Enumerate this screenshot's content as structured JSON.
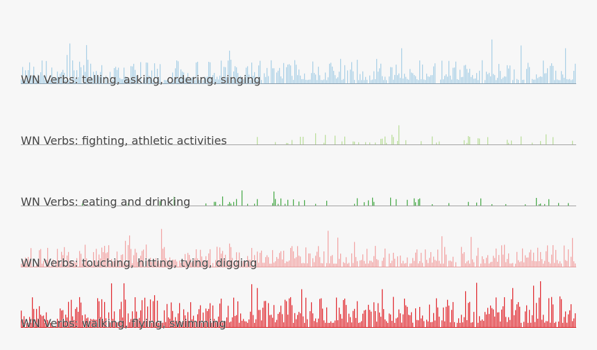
{
  "chart_data": {
    "type": "bar",
    "title": "",
    "xlabel": "",
    "ylabel": "",
    "x_count": 400,
    "ylim": [
      0,
      1
    ],
    "grid": false,
    "legend": "none",
    "series": [
      {
        "name": "WN Verbs: telling, asking, ordering, singing",
        "color": "#a9cfe6",
        "baseline_color": "#8aa0b0",
        "density": 0.92,
        "typical": 0.32,
        "peaks": [
          [
            35,
            1.0
          ],
          [
            274,
            0.88
          ],
          [
            339,
            1.1
          ],
          [
            360,
            0.95
          ],
          [
            392,
            0.88
          ],
          [
            150,
            0.82
          ]
        ]
      },
      {
        "name": "WN Verbs: fighting, athletic activities",
        "color": "#b9dd99",
        "baseline_color": "#a3a3a3",
        "density": 0.22,
        "typical": 0.14,
        "start": 170,
        "peaks": [
          [
            272,
            0.48
          ],
          [
            212,
            0.28
          ],
          [
            226,
            0.22
          ],
          [
            360,
            0.2
          ]
        ]
      },
      {
        "name": "WN Verbs: eating and drinking",
        "color": "#44a845",
        "baseline_color": "#a3a3a3",
        "density": 0.2,
        "typical": 0.12,
        "start": 40,
        "peaks": [
          [
            159,
            0.38
          ],
          [
            110,
            0.22
          ],
          [
            270,
            0.16
          ],
          [
            380,
            0.16
          ]
        ]
      },
      {
        "name": "WN Verbs: touching, hitting, tying, digging",
        "color": "#f2a3a3",
        "baseline_color": "#e6a0a0",
        "density": 0.9,
        "typical": 0.3,
        "peaks": [
          [
            221,
            0.9
          ],
          [
            397,
            0.72
          ],
          [
            240,
            0.62
          ],
          [
            150,
            0.58
          ],
          [
            348,
            0.55
          ]
        ]
      },
      {
        "name": "WN Verbs: walking, flying, swimming",
        "color": "#e0262c",
        "baseline_color": "#d62024",
        "density": 0.95,
        "typical": 0.42,
        "peaks": [
          [
            170,
            0.98
          ],
          [
            202,
            0.95
          ],
          [
            260,
            0.95
          ],
          [
            354,
            0.98
          ],
          [
            96,
            0.8
          ],
          [
            320,
            0.9
          ]
        ]
      }
    ]
  }
}
